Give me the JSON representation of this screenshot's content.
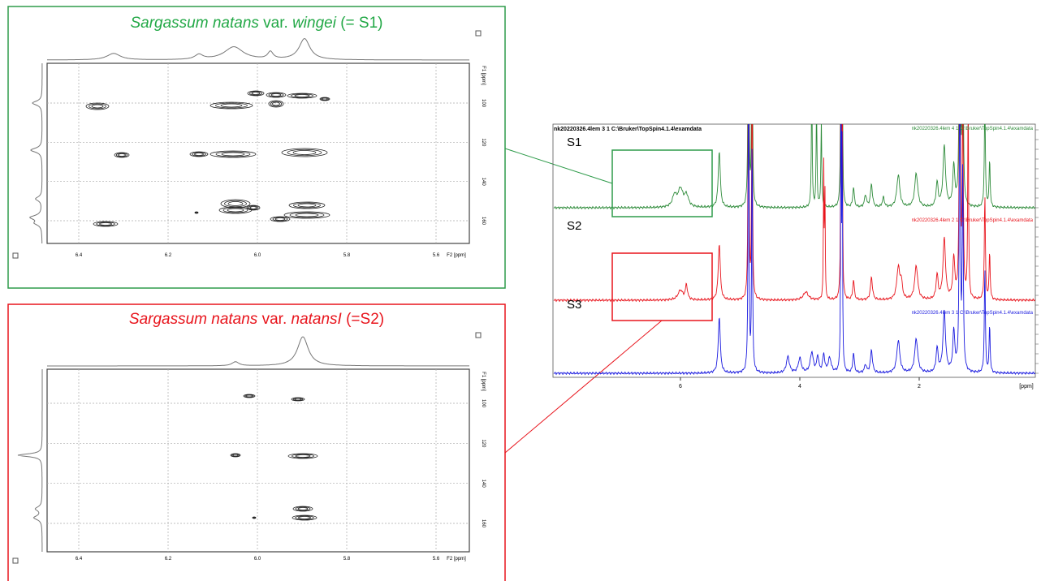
{
  "panels": [
    {
      "title": [
        "Sargassum natans",
        "var.",
        "wingei",
        "(= S1)"
      ],
      "x_ticks": [
        6.4,
        6.2,
        {
          "value": 6,
          "label": "6.0"
        },
        5.8,
        5.6
      ],
      "x_axis_label": "F2 [ppm]",
      "y_ticks": [
        100,
        120,
        140,
        160
      ],
      "y_axis_label": "F1 [ppm]"
    },
    {
      "title": [
        "Sargassum natans",
        "var.",
        "natansI",
        "(=S2)"
      ],
      "x_ticks": [
        6.4,
        6.2,
        {
          "value": 6,
          "label": "6.0"
        },
        5.8,
        5.6
      ],
      "x_axis_label": "F2 [ppm]",
      "y_ticks": [
        100,
        120,
        140,
        160
      ],
      "y_axis_label": "F1 [ppm]"
    }
  ],
  "spectrum": {
    "header": "nk20220326.4lem  3  1  C:\\Bruker\\TopSpin4.1.4\\examdata",
    "traces": [
      {
        "label": "S1",
        "info": "nk20220326.4lem  4  1  C:\\Bruker\\TopSpin4.1.4\\examdata",
        "color": "#2e8b3a"
      },
      {
        "label": "S2",
        "info": "nk20220326.4lem  2  1  C:\\Bruker\\TopSpin4.1.4\\examdata",
        "color": "#e8141c"
      },
      {
        "label": "S3",
        "info": "nk20220326.4lem  3  1  C:\\Bruker\\TopSpin4.1.4\\examdata",
        "color": "#1a1adf"
      }
    ],
    "x_ticks": [
      6,
      4,
      2
    ],
    "x_axis_label": "[ppm]"
  }
}
